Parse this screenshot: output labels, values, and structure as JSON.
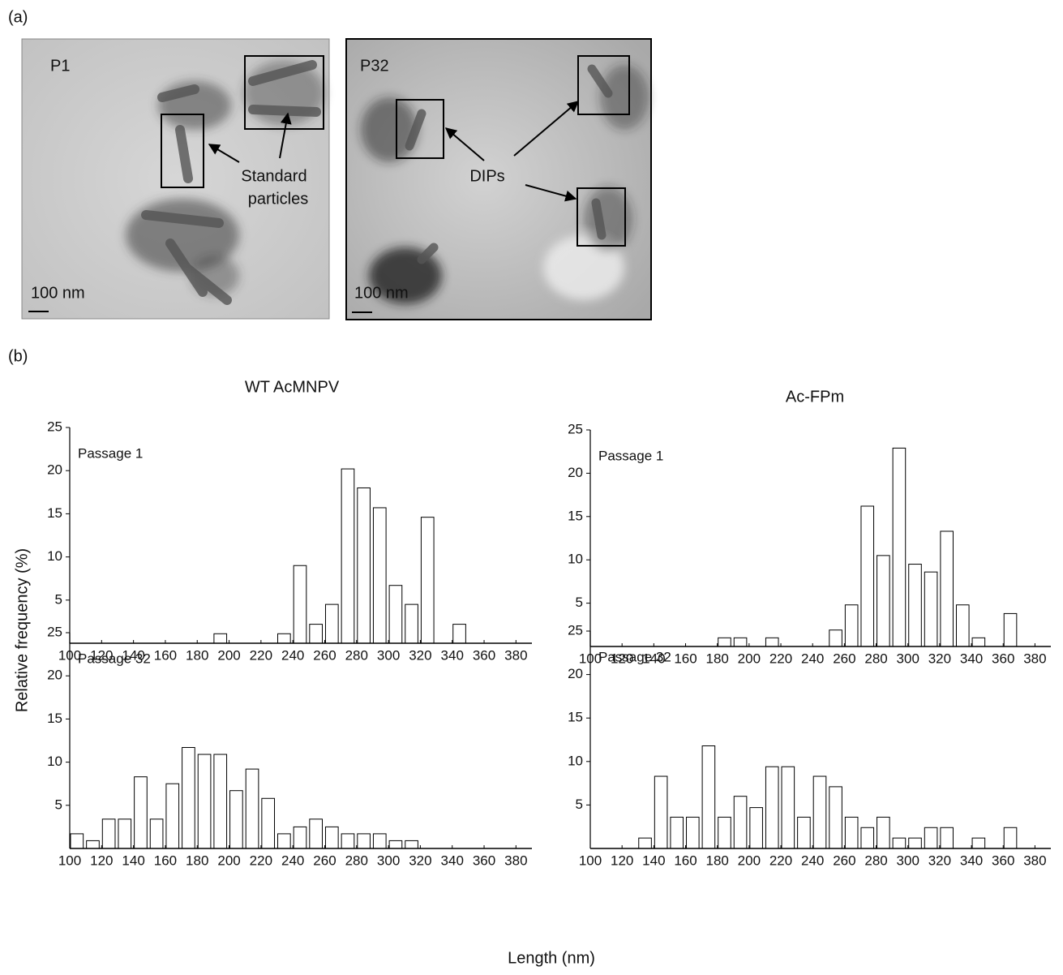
{
  "figure": {
    "panel_a": "(a)",
    "panel_b": "(b)",
    "ylabel": "Relative frequency (%)",
    "xlabel": "Length (nm)"
  },
  "micrographs": [
    {
      "label": "P1",
      "annotation": [
        "Standard",
        "particles"
      ],
      "scale": "100 nm"
    },
    {
      "label": "P32",
      "annotation": [
        "DIPs"
      ],
      "scale": "100 nm"
    }
  ],
  "chart_data": [
    {
      "type": "histogram",
      "title": "WT AcMNPV",
      "annotation": "Passage 1",
      "bins": [
        100,
        110,
        120,
        130,
        140,
        150,
        160,
        170,
        180,
        190,
        200,
        210,
        220,
        230,
        240,
        250,
        260,
        270,
        280,
        290,
        300,
        310,
        320,
        330,
        340,
        350,
        360,
        370,
        380
      ],
      "values": [
        0,
        0,
        0,
        0,
        0,
        0,
        0,
        0,
        0,
        1.1,
        0,
        0,
        0,
        1.1,
        9.0,
        2.2,
        4.5,
        20.2,
        18.0,
        15.7,
        6.7,
        4.5,
        14.6,
        0,
        2.2,
        0,
        0,
        0
      ],
      "color": "#ffffff",
      "xlim": [
        100,
        390
      ],
      "xticks": [
        100,
        120,
        140,
        160,
        180,
        200,
        220,
        240,
        260,
        280,
        300,
        320,
        340,
        360,
        380
      ],
      "ylim": [
        0,
        25
      ],
      "yticks": [
        5,
        10,
        15,
        20,
        25
      ]
    },
    {
      "type": "histogram",
      "title": "Ac-FPm",
      "annotation": "Passage 1",
      "bins": [
        100,
        110,
        120,
        130,
        140,
        150,
        160,
        170,
        180,
        190,
        200,
        210,
        220,
        230,
        240,
        250,
        260,
        270,
        280,
        290,
        300,
        310,
        320,
        330,
        340,
        350,
        360,
        370,
        380
      ],
      "values": [
        0,
        0,
        0,
        0,
        0,
        0,
        0,
        0,
        1,
        1,
        0,
        1,
        0,
        0,
        0,
        1.9,
        4.8,
        16.2,
        10.5,
        22.9,
        9.5,
        8.6,
        13.3,
        4.8,
        1,
        0,
        3.8,
        0
      ],
      "color": "#ffffff",
      "xlim": [
        100,
        390
      ],
      "xticks": [
        100,
        120,
        140,
        160,
        180,
        200,
        220,
        240,
        260,
        280,
        300,
        320,
        340,
        360,
        380
      ],
      "ylim": [
        0,
        25
      ],
      "yticks": [
        5,
        10,
        15,
        20,
        25
      ]
    },
    {
      "type": "histogram",
      "annotation": "Passage 32",
      "bins": [
        100,
        110,
        120,
        130,
        140,
        150,
        160,
        170,
        180,
        190,
        200,
        210,
        220,
        230,
        240,
        250,
        260,
        270,
        280,
        290,
        300,
        310,
        320,
        330,
        340,
        350,
        360,
        370,
        380
      ],
      "values": [
        1.7,
        0.9,
        3.4,
        3.4,
        8.3,
        3.4,
        7.5,
        11.7,
        10.9,
        10.9,
        6.7,
        9.2,
        5.8,
        1.7,
        2.5,
        3.4,
        2.5,
        1.7,
        1.7,
        1.7,
        0.9,
        0.9,
        0,
        0,
        0,
        0,
        0,
        0
      ],
      "color": "#ffffff",
      "xlim": [
        100,
        390
      ],
      "xticks": [
        100,
        120,
        140,
        160,
        180,
        200,
        220,
        240,
        260,
        280,
        300,
        320,
        340,
        360,
        380
      ],
      "ylim": [
        0,
        25
      ],
      "yticks": [
        5,
        10,
        15,
        20,
        25
      ]
    },
    {
      "type": "histogram",
      "annotation": "Passage 32",
      "bins": [
        100,
        110,
        120,
        130,
        140,
        150,
        160,
        170,
        180,
        190,
        200,
        210,
        220,
        230,
        240,
        250,
        260,
        270,
        280,
        290,
        300,
        310,
        320,
        330,
        340,
        350,
        360,
        370,
        380
      ],
      "values": [
        0,
        0,
        0,
        1.2,
        8.3,
        3.6,
        3.6,
        11.8,
        3.6,
        6.0,
        4.7,
        9.4,
        9.4,
        3.6,
        8.3,
        7.1,
        3.6,
        2.4,
        3.6,
        1.2,
        1.2,
        2.4,
        2.4,
        0,
        1.2,
        0,
        2.4,
        0
      ],
      "color": "#ffffff",
      "xlim": [
        100,
        390
      ],
      "xticks": [
        100,
        120,
        140,
        160,
        180,
        200,
        220,
        240,
        260,
        280,
        300,
        320,
        340,
        360,
        380
      ],
      "ylim": [
        0,
        25
      ],
      "yticks": [
        5,
        10,
        15,
        20,
        25
      ]
    }
  ]
}
